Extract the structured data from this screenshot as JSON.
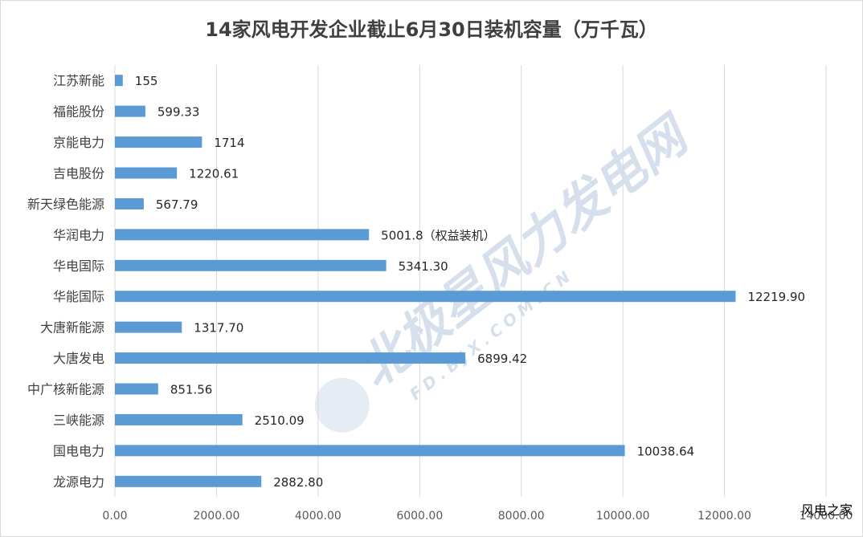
{
  "chart_data": {
    "type": "bar",
    "orientation": "horizontal",
    "title": "14家风电开发企业截止6月30日装机容量（万千瓦）",
    "categories": [
      "江苏新能",
      "福能股份",
      "京能电力",
      "吉电股份",
      "新天绿色能源",
      "华润电力",
      "华电国际",
      "华能国际",
      "大唐新能源",
      "大唐发电",
      "中广核新能源",
      "三峡能源",
      "国电电力",
      "龙源电力"
    ],
    "values": [
      155,
      599.33,
      1714,
      1220.61,
      567.79,
      5001.8,
      5341.3,
      12219.9,
      1317.7,
      6899.42,
      851.56,
      2510.09,
      10038.64,
      2882.8
    ],
    "data_labels": [
      "155",
      "599.33",
      "1714",
      "1220.61",
      "567.79",
      "5001.8（权益装机）",
      "5341.30",
      "12219.90",
      "1317.70",
      "6899.42",
      "851.56",
      "2510.09",
      "10038.64",
      "2882.80"
    ],
    "xlim": [
      0,
      14000
    ],
    "x_ticks": [
      "0.00",
      "2000.00",
      "4000.00",
      "6000.00",
      "8000.00",
      "10000.00",
      "12000.00",
      "14000.00"
    ],
    "grid": true,
    "legend": "none",
    "bar_color": "#5b9bd5"
  },
  "watermark": {
    "main": "北极星风力发电网",
    "sub": "FD.BJX.COM.CN"
  },
  "source_label": "风电之家"
}
